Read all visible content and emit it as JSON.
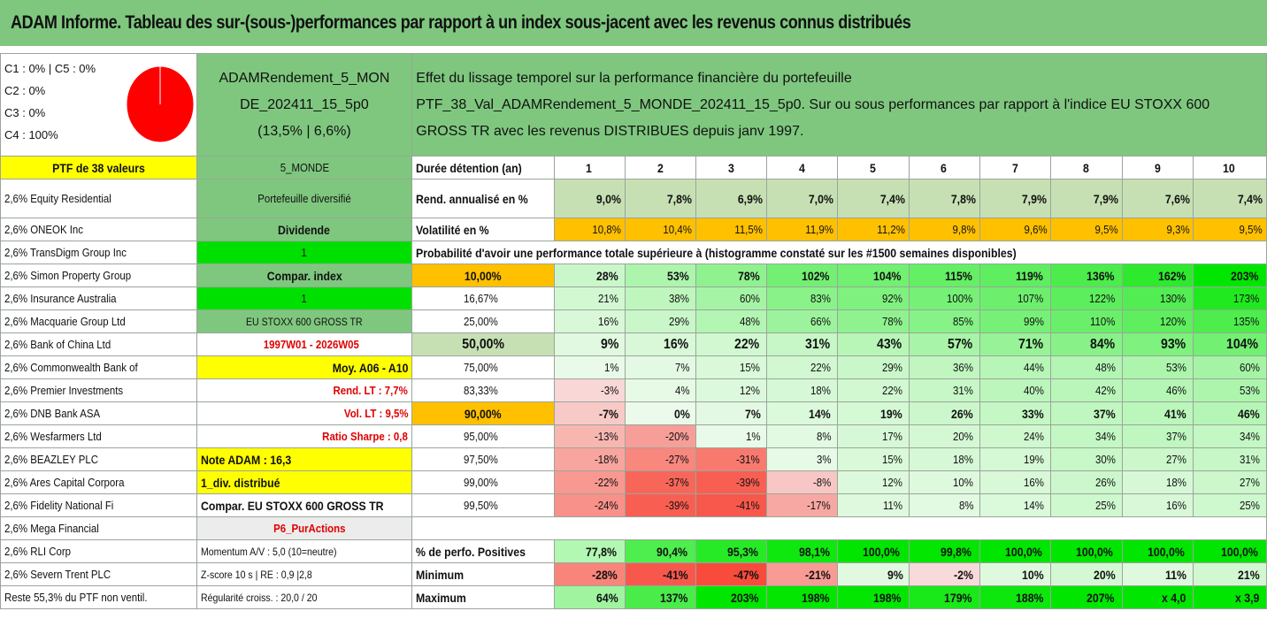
{
  "title": "ADAM Informe. Tableau des sur-(sous-)performances par rapport à un index sous-jacent avec les revenus connus distribués",
  "header": {
    "pie_labels": [
      "C1 : 0% | C5 : 0%",
      "C2 : 0%",
      "C3 : 0%",
      "C4 : 100%"
    ],
    "pie_share": 1.0,
    "pie_color": "#ff0000",
    "portfolio_name": [
      "ADAMRendement_5_MON",
      "DE_202411_15_5p0",
      "(13,5% | 6,6%)"
    ],
    "description": [
      "Effet du lissage temporel sur la performance financière du portefeuille",
      "PTF_38_Val_ADAMRendement_5_MONDE_202411_15_5p0. Sur ou sous performances par rapport à l'indice EU STOXX 600",
      "GROSS TR avec les revenus DISTRIBUES depuis janv 1997."
    ]
  },
  "ptf_label": "PTF de 38 valeurs",
  "ptf_code": "5_MONDE",
  "duration_label": "Durée détention (an)",
  "years": [
    "1",
    "2",
    "3",
    "4",
    "5",
    "6",
    "7",
    "8",
    "9",
    "10"
  ],
  "holdings": [
    "2,6% Equity Residential",
    "2,6% ONEOK Inc",
    "2,6% TransDigm Group Inc",
    "2,6% Simon Property Group",
    "2,6% Insurance Australia",
    "2,6% Macquarie Group Ltd",
    "2,6% Bank of China Ltd",
    "2,6% Commonwealth Bank of",
    "2,6% Premier Investments",
    "2,6% DNB Bank ASA",
    "2,6% Wesfarmers Ltd",
    "2,6% BEAZLEY PLC",
    "2,6% Ares Capital Corpora",
    "2,6% Fidelity National Fi",
    "2,6% Mega Financial",
    "2,6% RLI Corp",
    "2,6% Severn Trent PLC",
    "Reste 55,3% du PTF non ventil."
  ],
  "info": [
    "Portefeuille diversifié",
    "Dividende",
    "1",
    "Compar. index",
    "1",
    "EU STOXX 600 GROSS TR",
    "1997W01 - 2026W05",
    "Moy. A06 - A10",
    "Rend. LT : 7,7%",
    "Vol. LT : 9,5%",
    "Ratio Sharpe : 0,8",
    "Note ADAM : 16,3",
    "1_div. distribué",
    "Compar. EU STOXX 600 GROSS TR",
    "P6_PurActions",
    "Momentum A/V : 5,0 (10=neutre)",
    "Z-score 10 s | RE : 0,9 |2,8",
    "Régularité croiss. : 20,0 / 20"
  ],
  "rend": {
    "label": "Rend. annualisé en %",
    "values": [
      "9,0%",
      "7,8%",
      "6,9%",
      "7,0%",
      "7,4%",
      "7,8%",
      "7,9%",
      "7,9%",
      "7,6%",
      "7,4%"
    ]
  },
  "vol": {
    "label": "Volatilité en %",
    "values": [
      "10,8%",
      "10,4%",
      "11,5%",
      "11,9%",
      "11,2%",
      "9,8%",
      "9,6%",
      "9,5%",
      "9,3%",
      "9,5%"
    ]
  },
  "prob_title": "Probabilité d'avoir une performance totale supérieure à (histogramme constaté sur les #1500 semaines disponibles)",
  "quantiles": [
    {
      "p": "10,00%",
      "v": [
        "28%",
        "53%",
        "78%",
        "102%",
        "104%",
        "115%",
        "119%",
        "136%",
        "162%",
        "203%"
      ]
    },
    {
      "p": "16,67%",
      "v": [
        "21%",
        "38%",
        "60%",
        "83%",
        "92%",
        "100%",
        "107%",
        "122%",
        "130%",
        "173%"
      ]
    },
    {
      "p": "25,00%",
      "v": [
        "16%",
        "29%",
        "48%",
        "66%",
        "78%",
        "85%",
        "99%",
        "110%",
        "120%",
        "135%"
      ]
    },
    {
      "p": "50,00%",
      "v": [
        "9%",
        "16%",
        "22%",
        "31%",
        "43%",
        "57%",
        "71%",
        "84%",
        "93%",
        "104%"
      ]
    },
    {
      "p": "75,00%",
      "v": [
        "1%",
        "7%",
        "15%",
        "22%",
        "29%",
        "36%",
        "44%",
        "48%",
        "53%",
        "60%"
      ]
    },
    {
      "p": "83,33%",
      "v": [
        "-3%",
        "4%",
        "12%",
        "18%",
        "22%",
        "31%",
        "40%",
        "42%",
        "46%",
        "53%"
      ]
    },
    {
      "p": "90,00%",
      "v": [
        "-7%",
        "0%",
        "7%",
        "14%",
        "19%",
        "26%",
        "33%",
        "37%",
        "41%",
        "46%"
      ]
    },
    {
      "p": "95,00%",
      "v": [
        "-13%",
        "-20%",
        "1%",
        "8%",
        "17%",
        "20%",
        "24%",
        "34%",
        "37%",
        "34%"
      ]
    },
    {
      "p": "97,50%",
      "v": [
        "-18%",
        "-27%",
        "-31%",
        "3%",
        "15%",
        "18%",
        "19%",
        "30%",
        "27%",
        "31%"
      ]
    },
    {
      "p": "99,00%",
      "v": [
        "-22%",
        "-37%",
        "-39%",
        "-8%",
        "12%",
        "10%",
        "16%",
        "26%",
        "18%",
        "27%"
      ]
    },
    {
      "p": "99,50%",
      "v": [
        "-24%",
        "-39%",
        "-41%",
        "-17%",
        "11%",
        "8%",
        "14%",
        "25%",
        "16%",
        "25%"
      ]
    }
  ],
  "positives": {
    "label": "% de perfo. Positives",
    "values": [
      "77,8%",
      "90,4%",
      "95,3%",
      "98,1%",
      "100,0%",
      "99,8%",
      "100,0%",
      "100,0%",
      "100,0%",
      "100,0%"
    ]
  },
  "minimum": {
    "label": "Minimum",
    "values": [
      "-28%",
      "-41%",
      "-47%",
      "-21%",
      "9%",
      "-2%",
      "10%",
      "20%",
      "11%",
      "21%"
    ]
  },
  "maximum": {
    "label": "Maximum",
    "values": [
      "64%",
      "137%",
      "203%",
      "198%",
      "198%",
      "179%",
      "188%",
      "207%",
      "x 4,0",
      "x 3,9"
    ]
  }
}
